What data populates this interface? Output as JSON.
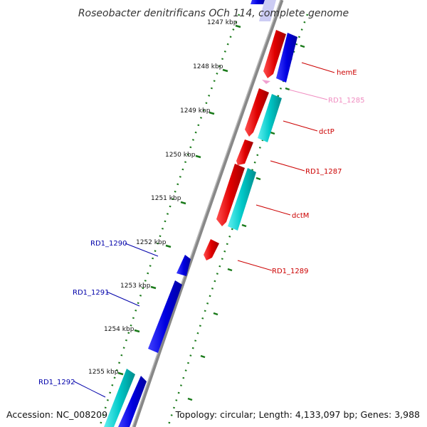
{
  "title": "Roseobacter denitrificans OCh 114, complete genome",
  "footer": {
    "accession": "Accession: NC_008209",
    "summary": "Topology: circular; Length: 4,133,097 bp; Genes: 3,988"
  },
  "ticks": [
    "1247 kbp",
    "1248 kbp",
    "1249 kbp",
    "1250 kbp",
    "1251 kbp",
    "1252 kbp",
    "1253 kbp",
    "1254 kbp",
    "1255 kbp"
  ],
  "colors": {
    "backbone": "#888888",
    "tick_dots": "#1a7a1a",
    "cds_forward": "#e00000",
    "cds_reverse": "#0000e0",
    "cds_cyan": "#00c8c8",
    "rna_pink": "#f0a0d0",
    "label_red": "#cc0000",
    "label_blue": "#0000aa",
    "label_pink": "#f08cc0"
  },
  "genes": [
    {
      "label": "hemE",
      "color": "label_red"
    },
    {
      "label": "RD1_1285",
      "color": "label_pink"
    },
    {
      "label": "dctP",
      "color": "label_red"
    },
    {
      "label": "RD1_1287",
      "color": "label_red"
    },
    {
      "label": "dctM",
      "color": "label_red"
    },
    {
      "label": "RD1_1289",
      "color": "label_red"
    },
    {
      "label": "RD1_1290",
      "color": "label_blue"
    },
    {
      "label": "RD1_1291",
      "color": "label_blue"
    },
    {
      "label": "RD1_1292",
      "color": "label_blue"
    }
  ]
}
